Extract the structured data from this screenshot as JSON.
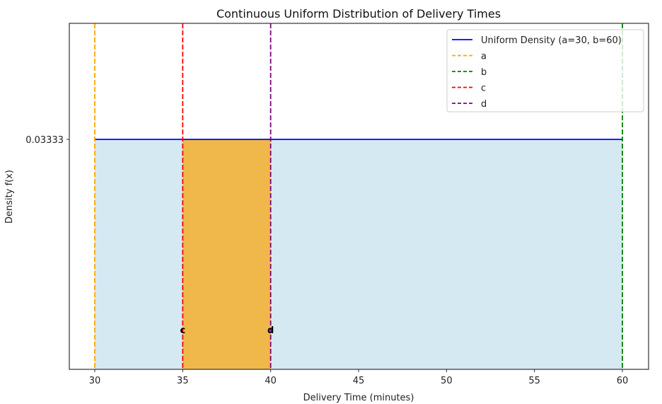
{
  "chart_data": {
    "type": "area",
    "title": "Continuous Uniform Distribution of Delivery Times",
    "xlabel": "Delivery Time (minutes)",
    "ylabel": "Density f(x)",
    "xlim": [
      28.5,
      61.5
    ],
    "ylim": [
      0,
      0.05
    ],
    "xticks": [
      30,
      35,
      40,
      45,
      50,
      55,
      60
    ],
    "yticks": [
      0.03333
    ],
    "ytick_labels": [
      "0.03333"
    ],
    "grid": false,
    "legend_position": "upper right",
    "series": [
      {
        "name": "Uniform Density (a=30, b=60)",
        "x": [
          30,
          60
        ],
        "y": [
          0.03333,
          0.03333
        ],
        "color": "#0000ff",
        "style": "solid"
      }
    ],
    "vlines": [
      {
        "label": "a",
        "x": 30,
        "color": "#ffa500",
        "style": "dashed"
      },
      {
        "label": "b",
        "x": 60,
        "color": "#008000",
        "style": "dashed"
      },
      {
        "label": "c",
        "x": 35,
        "color": "#ff0000",
        "style": "dashed"
      },
      {
        "label": "d",
        "x": 40,
        "color": "#800080",
        "style": "dashed"
      }
    ],
    "fills": [
      {
        "x": [
          30,
          60
        ],
        "y": 0.03333,
        "color": "#add8e6",
        "alpha": 0.5
      },
      {
        "x": [
          35,
          40
        ],
        "y": 0.03333,
        "color": "#f0b84a",
        "alpha": 1.0
      }
    ],
    "annotations": [
      {
        "text": "c",
        "x": 35
      },
      {
        "text": "d",
        "x": 40
      }
    ],
    "legend": [
      "Uniform Density (a=30, b=60)",
      "a",
      "b",
      "c",
      "d"
    ]
  }
}
